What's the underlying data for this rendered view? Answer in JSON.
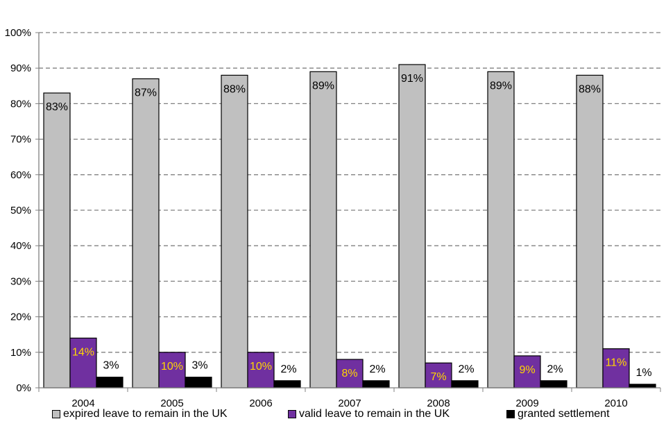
{
  "chart_data": {
    "type": "bar",
    "title": "",
    "xlabel": "",
    "ylabel": "",
    "categories": [
      "2004",
      "2005",
      "2006",
      "2007",
      "2008",
      "2009",
      "2010"
    ],
    "series": [
      {
        "name": "expired leave to remain in the UK",
        "values": [
          83,
          87,
          88,
          89,
          91,
          89,
          88
        ],
        "labels": [
          "83%",
          "87%",
          "88%",
          "89%",
          "91%",
          "89%",
          "88%"
        ],
        "color": "#c0c0c0",
        "label_color": "#000000"
      },
      {
        "name": "valid leave to remain in the UK",
        "values": [
          14,
          10,
          10,
          8,
          7,
          9,
          11
        ],
        "labels": [
          "14%",
          "10%",
          "10%",
          "8%",
          "7%",
          "9%",
          "11%"
        ],
        "color": "#7030a0",
        "label_color": "#ffd700"
      },
      {
        "name": "granted settlement",
        "values": [
          3,
          3,
          2,
          2,
          2,
          2,
          1
        ],
        "labels": [
          "3%",
          "3%",
          "2%",
          "2%",
          "2%",
          "2%",
          "1%"
        ],
        "color": "#000000",
        "label_color": "#000000"
      }
    ],
    "ylim": [
      0,
      100
    ],
    "yticks": [
      "0%",
      "10%",
      "20%",
      "30%",
      "40%",
      "50%",
      "60%",
      "70%",
      "80%",
      "90%",
      "100%"
    ],
    "grid": "horizontal dashed",
    "legend_position": "bottom"
  }
}
